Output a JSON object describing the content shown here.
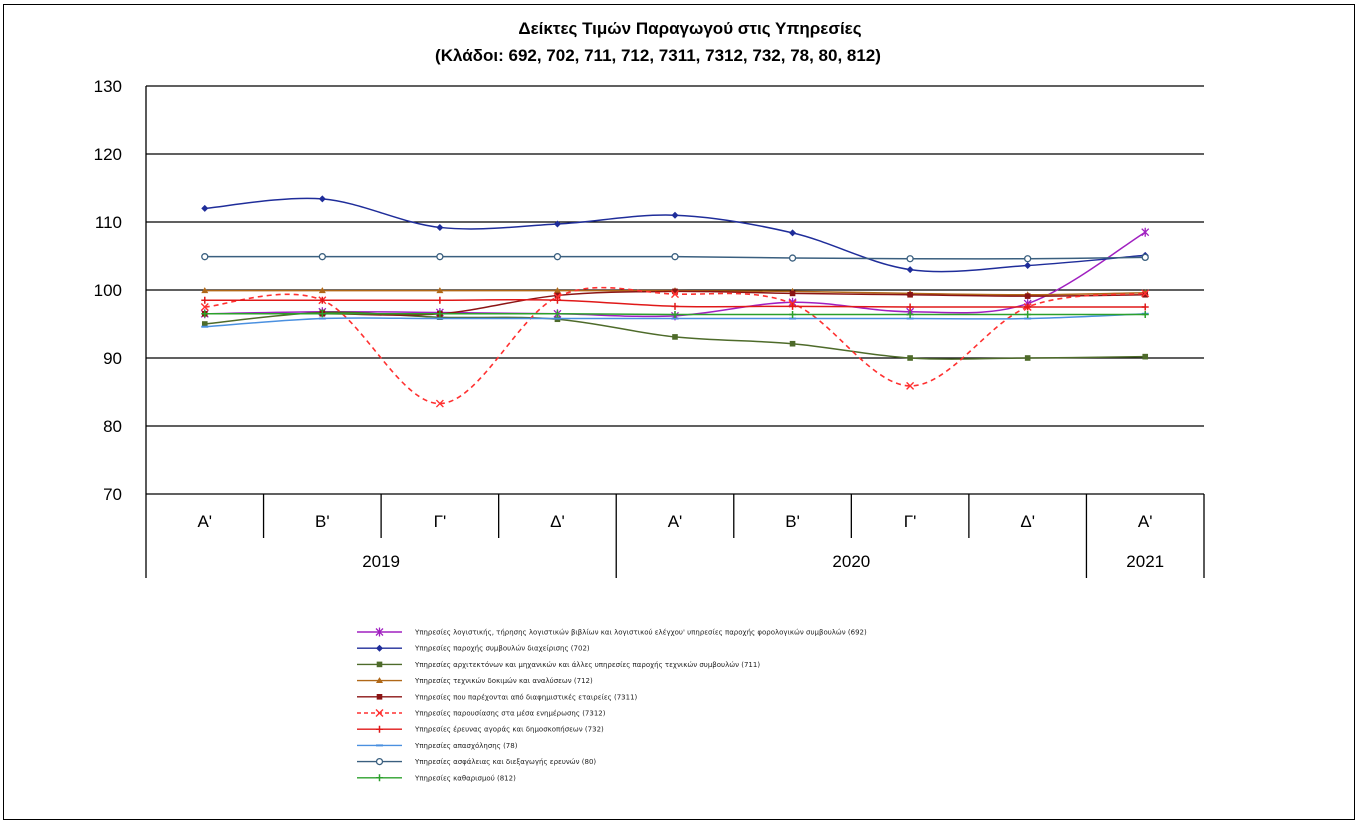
{
  "chart_data": {
    "type": "line",
    "title": "Δείκτες Τιμών Παραγωγού στις Υπηρεσίες",
    "subtitle": "(Κλάδοι: 692, 702, 711, 712, 7311, 7312, 732, 78, 80, 812)",
    "xlabel": "",
    "ylabel": "",
    "ylim": [
      70,
      130
    ],
    "yticks": [
      70,
      80,
      90,
      100,
      110,
      120,
      130
    ],
    "grid": true,
    "legend_position": "bottom",
    "categories": [
      "Α'",
      "Β'",
      "Γ'",
      "Δ'",
      "Α'",
      "Β'",
      "Γ'",
      "Δ'",
      "Α'"
    ],
    "years": [
      {
        "label": "2019",
        "quarters": 4
      },
      {
        "label": "2020",
        "quarters": 4
      },
      {
        "label": "2021",
        "quarters": 1
      }
    ],
    "series": [
      {
        "name": "Υπηρεσίες λογιστικής, τήρησης λογιστικών βιβλίων και λογιστικού ελέγχου' υπηρεσίες παροχής φορολογικών συμβουλών (692)",
        "color": "#a020c0",
        "dash": false,
        "marker": "star",
        "values": [
          96.5,
          96.8,
          96.7,
          96.5,
          96.2,
          98.2,
          96.8,
          98.0,
          108.5
        ]
      },
      {
        "name": "Υπηρεσίες παροχής συμβουλών διαχείρισης (702)",
        "color": "#1f2d9a",
        "dash": false,
        "marker": "diamond",
        "values": [
          112.0,
          113.4,
          109.2,
          109.7,
          111.0,
          108.4,
          103.0,
          103.6,
          105.1
        ]
      },
      {
        "name": "Υπηρεσίες αρχιτεκτόνων και μηχανικών και άλλες υπηρεσίες παροχής τεχνικών συμβουλών (711)",
        "color": "#4e6b2a",
        "dash": false,
        "marker": "square",
        "values": [
          95.0,
          96.7,
          96.0,
          95.7,
          93.1,
          92.1,
          90.0,
          90.0,
          90.2
        ]
      },
      {
        "name": "Υπηρεσίες τεχνικών δοκιμών και αναλύσεων (712)",
        "color": "#b06818",
        "dash": false,
        "marker": "triangle",
        "values": [
          99.9,
          99.9,
          99.9,
          99.9,
          99.9,
          99.8,
          99.5,
          99.3,
          99.6
        ]
      },
      {
        "name": "Υπηρεσίες που παρέχονται από διαφημιστικές εταιρείες (7311)",
        "color": "#8b1414",
        "dash": false,
        "marker": "square",
        "values": [
          96.5,
          96.5,
          96.5,
          99.2,
          99.8,
          99.5,
          99.3,
          99.1,
          99.3
        ]
      },
      {
        "name": "Υπηρεσίες παρουσίασης στα μέσα ενημέρωσης (7312)",
        "color": "#ff3030",
        "dash": true,
        "marker": "x",
        "values": [
          97.5,
          98.5,
          83.3,
          99.0,
          99.4,
          98.0,
          85.9,
          97.5,
          99.5
        ]
      },
      {
        "name": "Υπηρεσίες έρευνας αγοράς και δημοσκοπήσεων (732)",
        "color": "#e01818",
        "dash": false,
        "marker": "plus",
        "values": [
          98.5,
          98.5,
          98.5,
          98.5,
          97.6,
          97.6,
          97.5,
          97.5,
          97.5
        ]
      },
      {
        "name": "Υπηρεσίες απασχόλησης (78)",
        "color": "#4a90e0",
        "dash": false,
        "marker": "dash",
        "values": [
          94.6,
          95.8,
          95.8,
          95.8,
          95.8,
          95.8,
          95.8,
          95.8,
          96.5
        ]
      },
      {
        "name": "Υπηρεσίες ασφάλειας και διεξαγωγής ερευνών (80)",
        "color": "#3a5f7f",
        "dash": false,
        "marker": "circle",
        "values": [
          104.9,
          104.9,
          104.9,
          104.9,
          104.9,
          104.7,
          104.6,
          104.6,
          104.8
        ]
      },
      {
        "name": "Υπηρεσίες καθαρισμού (812)",
        "color": "#2ca02c",
        "dash": false,
        "marker": "cross",
        "values": [
          96.5,
          96.5,
          96.5,
          96.5,
          96.4,
          96.4,
          96.4,
          96.4,
          96.4
        ]
      }
    ]
  }
}
